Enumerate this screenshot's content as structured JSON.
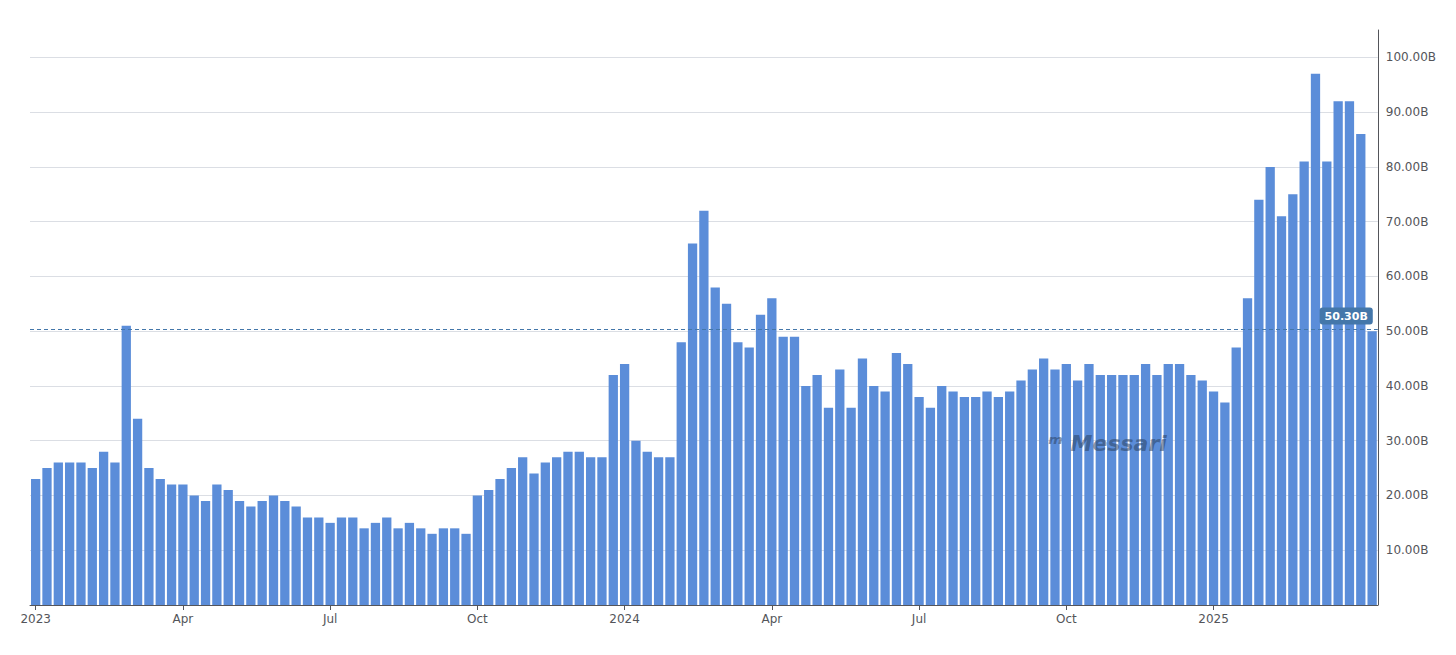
{
  "chart_data": {
    "type": "bar",
    "categories": [
      "2023",
      null,
      null,
      null,
      null,
      null,
      null,
      null,
      null,
      null,
      null,
      null,
      null,
      "Apr",
      null,
      null,
      null,
      null,
      null,
      null,
      null,
      null,
      null,
      null,
      null,
      null,
      "Jul",
      null,
      null,
      null,
      null,
      null,
      null,
      null,
      null,
      null,
      null,
      null,
      null,
      "Oct",
      null,
      null,
      null,
      null,
      null,
      null,
      null,
      null,
      null,
      null,
      null,
      null,
      "2024",
      null,
      null,
      null,
      null,
      null,
      null,
      null,
      null,
      null,
      null,
      null,
      null,
      "Apr",
      null,
      null,
      null,
      null,
      null,
      null,
      null,
      null,
      null,
      null,
      null,
      null,
      "Jul",
      null,
      null,
      null,
      null,
      null,
      null,
      null,
      null,
      null,
      null,
      null,
      null,
      "Oct",
      null,
      null,
      null,
      null,
      null,
      null,
      null,
      null,
      null,
      null,
      null,
      null,
      "2025",
      null,
      null,
      null,
      null,
      null,
      null,
      null,
      null,
      null,
      null,
      null,
      null,
      null,
      null
    ],
    "values": [
      23,
      25,
      26,
      26,
      26,
      25,
      28,
      26,
      51,
      34,
      25,
      23,
      22,
      22,
      20,
      19,
      22,
      21,
      19,
      18,
      19,
      20,
      19,
      18,
      16,
      16,
      15,
      16,
      16,
      14,
      15,
      16,
      14,
      15,
      14,
      13,
      14,
      14,
      13,
      20,
      21,
      23,
      25,
      27,
      24,
      26,
      27,
      28,
      28,
      27,
      27,
      42,
      44,
      30,
      28,
      27,
      27,
      48,
      66,
      72,
      58,
      55,
      48,
      47,
      53,
      56,
      49,
      49,
      40,
      42,
      36,
      43,
      36,
      45,
      40,
      39,
      46,
      44,
      38,
      36,
      40,
      39,
      38,
      38,
      39,
      38,
      39,
      41,
      43,
      45,
      43,
      44,
      41,
      44,
      42,
      42,
      42,
      42,
      44,
      42,
      44,
      44,
      42,
      41,
      39,
      37,
      47,
      56,
      74,
      80,
      71,
      75,
      81,
      97,
      81,
      92,
      92,
      86,
      50
    ],
    "color": "#5b8dd9",
    "ylim": [
      0,
      105
    ],
    "yticks": [
      {
        "value": 10,
        "label": "10.00B"
      },
      {
        "value": 20,
        "label": "20.00B"
      },
      {
        "value": 30,
        "label": "30.00B"
      },
      {
        "value": 40,
        "label": "40.00B"
      },
      {
        "value": 50,
        "label": "50.00B"
      },
      {
        "value": 60,
        "label": "60.00B"
      },
      {
        "value": 70,
        "label": "70.00B"
      },
      {
        "value": 80,
        "label": "80.00B"
      },
      {
        "value": 90,
        "label": "90.00B"
      },
      {
        "value": 100,
        "label": "100.00B"
      }
    ],
    "grid": true,
    "annotations": [
      {
        "y": 50.3,
        "text": "50.30B",
        "color": "#4477aa"
      },
      {
        "text": "ᵐ Messari"
      }
    ]
  }
}
